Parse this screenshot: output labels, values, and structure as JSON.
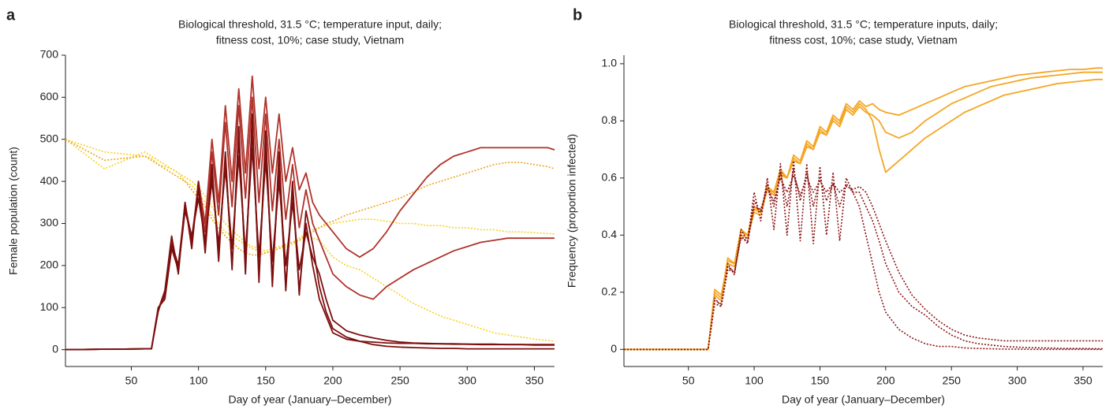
{
  "chart_data": [
    {
      "type": "line",
      "panel_label": "a",
      "title": [
        "Biological threshold, 31.5 °C; temperature input, daily;",
        "fitness cost, 10%; case study, Vietnam"
      ],
      "x_label": "Day of year (January–December)",
      "y_label": "Female population (count)",
      "xlim": [
        1,
        365
      ],
      "ylim": [
        -40,
        700
      ],
      "xticks": [
        50,
        100,
        150,
        200,
        250,
        300,
        350
      ],
      "yticks": [
        0,
        100,
        200,
        300,
        400,
        500,
        600,
        700
      ],
      "x": [
        1,
        30,
        60,
        65,
        70,
        75,
        80,
        85,
        90,
        95,
        100,
        105,
        110,
        115,
        120,
        125,
        130,
        135,
        140,
        145,
        150,
        155,
        160,
        165,
        170,
        175,
        180,
        185,
        190,
        195,
        200,
        210,
        220,
        230,
        240,
        250,
        260,
        270,
        280,
        290,
        300,
        310,
        320,
        330,
        340,
        350,
        360,
        365
      ],
      "series": [
        {
          "color": "#f7d21e",
          "style": "dotted",
          "values": [
            500,
            470,
            460,
            455,
            440,
            435,
            430,
            420,
            400,
            390,
            370,
            350,
            320,
            300,
            280,
            270,
            260,
            250,
            240,
            235,
            230,
            235,
            240,
            245,
            250,
            260,
            270,
            265,
            260,
            240,
            220,
            200,
            190,
            170,
            150,
            130,
            110,
            95,
            80,
            70,
            60,
            50,
            40,
            35,
            30,
            25,
            22,
            20
          ]
        },
        {
          "color": "#f7d21e",
          "style": "dotted",
          "values": [
            500,
            430,
            470,
            460,
            450,
            440,
            430,
            420,
            410,
            400,
            385,
            365,
            340,
            320,
            300,
            285,
            270,
            255,
            245,
            240,
            235,
            240,
            245,
            250,
            255,
            265,
            275,
            285,
            290,
            295,
            300,
            305,
            310,
            310,
            305,
            300,
            300,
            295,
            295,
            290,
            290,
            285,
            285,
            280,
            280,
            278,
            276,
            275
          ]
        },
        {
          "color": "#f0a21c",
          "style": "dotted",
          "values": [
            500,
            450,
            460,
            450,
            440,
            430,
            420,
            410,
            400,
            380,
            360,
            340,
            310,
            290,
            270,
            255,
            240,
            230,
            225,
            225,
            230,
            235,
            240,
            250,
            255,
            260,
            270,
            280,
            290,
            300,
            305,
            320,
            330,
            340,
            350,
            360,
            375,
            390,
            400,
            410,
            420,
            430,
            440,
            445,
            445,
            440,
            435,
            430
          ]
        },
        {
          "color": "#b0322a",
          "style": "solid",
          "values": [
            0,
            1,
            2,
            2,
            95,
            140,
            260,
            190,
            350,
            250,
            400,
            300,
            500,
            350,
            580,
            400,
            620,
            420,
            650,
            430,
            600,
            420,
            560,
            400,
            480,
            380,
            420,
            350,
            320,
            300,
            280,
            240,
            220,
            240,
            280,
            330,
            370,
            410,
            440,
            460,
            470,
            480,
            480,
            480,
            480,
            480,
            480,
            475
          ]
        },
        {
          "color": "#b0322a",
          "style": "solid",
          "values": [
            0,
            1,
            2,
            2,
            95,
            130,
            255,
            200,
            345,
            265,
            390,
            280,
            470,
            320,
            540,
            340,
            580,
            360,
            600,
            350,
            560,
            330,
            500,
            310,
            440,
            290,
            380,
            300,
            260,
            220,
            180,
            150,
            130,
            120,
            150,
            170,
            190,
            205,
            220,
            235,
            245,
            255,
            260,
            265,
            265,
            265,
            265,
            265
          ]
        },
        {
          "color": "#7d0f0f",
          "style": "solid",
          "values": [
            0,
            1,
            2,
            2,
            95,
            130,
            250,
            200,
            340,
            260,
            380,
            250,
            420,
            230,
            450,
            200,
            500,
            210,
            520,
            180,
            480,
            170,
            430,
            150,
            380,
            140,
            300,
            200,
            120,
            80,
            40,
            25,
            20,
            18,
            16,
            15,
            15,
            14,
            14,
            13,
            13,
            12,
            12,
            12,
            12,
            11,
            11,
            11
          ]
        },
        {
          "color": "#7d0f0f",
          "style": "solid",
          "values": [
            0,
            1,
            2,
            2,
            90,
            140,
            270,
            180,
            350,
            240,
            400,
            230,
            440,
            210,
            470,
            190,
            530,
            180,
            560,
            160,
            520,
            150,
            470,
            140,
            400,
            130,
            330,
            250,
            150,
            90,
            50,
            30,
            20,
            12,
            8,
            6,
            5,
            4,
            3,
            3,
            2,
            2,
            2,
            2,
            2,
            2,
            2,
            2
          ]
        },
        {
          "color": "#7d0f0f",
          "style": "solid",
          "values": [
            0,
            1,
            2,
            2,
            100,
            120,
            240,
            190,
            330,
            270,
            360,
            260,
            400,
            250,
            430,
            240,
            460,
            230,
            480,
            220,
            450,
            210,
            400,
            200,
            350,
            190,
            280,
            220,
            180,
            120,
            70,
            45,
            35,
            28,
            22,
            18,
            16,
            15,
            14,
            14,
            13,
            13,
            13,
            12,
            12,
            12,
            12,
            12
          ]
        }
      ]
    },
    {
      "type": "line",
      "panel_label": "b",
      "title": [
        "Biological threshold, 31.5 °C; temperature inputs, daily;",
        "fitness cost, 10%; case study, Vietnam"
      ],
      "x_label": "Day of year (January–December)",
      "y_label": "Frequency (proportion infected)",
      "xlim": [
        1,
        365
      ],
      "ylim": [
        -0.06,
        1.03
      ],
      "xticks": [
        50,
        100,
        150,
        200,
        250,
        300,
        350
      ],
      "yticks": [
        0,
        0.2,
        0.4,
        0.6,
        0.8,
        {
          "value": 1,
          "label": "1.0"
        }
      ],
      "x": [
        1,
        30,
        60,
        65,
        70,
        75,
        80,
        85,
        90,
        95,
        100,
        105,
        110,
        115,
        120,
        125,
        130,
        135,
        140,
        145,
        150,
        155,
        160,
        165,
        170,
        175,
        180,
        185,
        190,
        195,
        200,
        210,
        220,
        230,
        240,
        250,
        260,
        270,
        280,
        290,
        300,
        310,
        320,
        330,
        340,
        350,
        360,
        365
      ],
      "series": [
        {
          "color": "#f5a623",
          "style": "solid",
          "values": [
            0,
            0,
            0,
            0,
            0.2,
            0.18,
            0.32,
            0.3,
            0.42,
            0.4,
            0.5,
            0.48,
            0.57,
            0.55,
            0.63,
            0.6,
            0.68,
            0.66,
            0.73,
            0.71,
            0.78,
            0.76,
            0.82,
            0.8,
            0.86,
            0.84,
            0.87,
            0.85,
            0.86,
            0.84,
            0.83,
            0.82,
            0.84,
            0.86,
            0.88,
            0.9,
            0.92,
            0.93,
            0.94,
            0.95,
            0.96,
            0.965,
            0.97,
            0.975,
            0.98,
            0.98,
            0.985,
            0.985
          ]
        },
        {
          "color": "#f5a623",
          "style": "solid",
          "values": [
            0,
            0,
            0,
            0,
            0.19,
            0.17,
            0.3,
            0.29,
            0.4,
            0.39,
            0.48,
            0.47,
            0.56,
            0.54,
            0.62,
            0.6,
            0.67,
            0.65,
            0.72,
            0.7,
            0.77,
            0.75,
            0.81,
            0.79,
            0.85,
            0.83,
            0.86,
            0.84,
            0.8,
            0.7,
            0.62,
            0.66,
            0.7,
            0.74,
            0.77,
            0.8,
            0.83,
            0.85,
            0.87,
            0.89,
            0.9,
            0.91,
            0.92,
            0.93,
            0.935,
            0.94,
            0.945,
            0.945
          ]
        },
        {
          "color": "#f5a623",
          "style": "solid",
          "values": [
            0,
            0,
            0,
            0,
            0.21,
            0.19,
            0.31,
            0.3,
            0.41,
            0.4,
            0.49,
            0.48,
            0.56,
            0.55,
            0.61,
            0.6,
            0.66,
            0.65,
            0.71,
            0.7,
            0.76,
            0.75,
            0.8,
            0.78,
            0.84,
            0.82,
            0.85,
            0.83,
            0.82,
            0.8,
            0.76,
            0.74,
            0.76,
            0.8,
            0.83,
            0.86,
            0.88,
            0.9,
            0.92,
            0.93,
            0.94,
            0.95,
            0.955,
            0.96,
            0.965,
            0.97,
            0.97,
            0.97
          ]
        },
        {
          "color": "#8b1414",
          "style": "dotted",
          "values": [
            0,
            0,
            0,
            0,
            0.18,
            0.15,
            0.3,
            0.26,
            0.42,
            0.38,
            0.55,
            0.45,
            0.6,
            0.42,
            0.65,
            0.4,
            0.66,
            0.38,
            0.65,
            0.37,
            0.64,
            0.4,
            0.62,
            0.38,
            0.6,
            0.55,
            0.5,
            0.4,
            0.3,
            0.2,
            0.13,
            0.07,
            0.04,
            0.02,
            0.01,
            0.01,
            0.005,
            0.003,
            0.002,
            0.001,
            0.001,
            0,
            0,
            0,
            0,
            0,
            0,
            0
          ]
        },
        {
          "color": "#8b1414",
          "style": "dotted",
          "values": [
            0,
            0,
            0,
            0,
            0.17,
            0.16,
            0.29,
            0.27,
            0.4,
            0.37,
            0.52,
            0.48,
            0.58,
            0.5,
            0.62,
            0.5,
            0.63,
            0.52,
            0.62,
            0.5,
            0.6,
            0.52,
            0.58,
            0.5,
            0.58,
            0.55,
            0.55,
            0.5,
            0.45,
            0.38,
            0.3,
            0.2,
            0.15,
            0.12,
            0.08,
            0.05,
            0.03,
            0.02,
            0.015,
            0.01,
            0.008,
            0.006,
            0.005,
            0.004,
            0.003,
            0.003,
            0.002,
            0.002
          ]
        },
        {
          "color": "#8b1414",
          "style": "dotted",
          "values": [
            0,
            0,
            0,
            0,
            0.16,
            0.15,
            0.28,
            0.27,
            0.39,
            0.38,
            0.5,
            0.49,
            0.56,
            0.52,
            0.6,
            0.55,
            0.61,
            0.54,
            0.6,
            0.55,
            0.59,
            0.55,
            0.58,
            0.55,
            0.57,
            0.56,
            0.57,
            0.55,
            0.5,
            0.44,
            0.38,
            0.27,
            0.19,
            0.14,
            0.1,
            0.07,
            0.05,
            0.04,
            0.035,
            0.03,
            0.03,
            0.03,
            0.03,
            0.03,
            0.03,
            0.03,
            0.03,
            0.03
          ]
        }
      ]
    }
  ]
}
